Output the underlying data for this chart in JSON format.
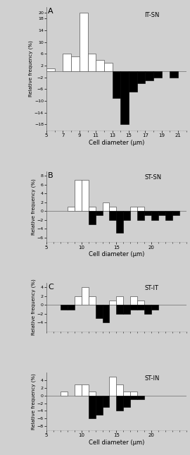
{
  "bg": "#d0d0d0",
  "A": {
    "label": "A",
    "annot": "IT-SN",
    "xlim": [
      5,
      22
    ],
    "ylim": [
      -20,
      22
    ],
    "yticks": [
      -18,
      -14,
      -10,
      -6,
      -2,
      2,
      6,
      10,
      14,
      18,
      20
    ],
    "xticks": [
      5,
      7,
      9,
      11,
      13,
      15,
      17,
      19,
      21
    ],
    "xlabel": "Cell diameter (μm)",
    "ylabel": "Relative frequency (%)",
    "white_left": [
      5,
      7,
      8,
      9,
      10,
      11,
      12
    ],
    "white_h": [
      1,
      6,
      5,
      20,
      6,
      4,
      3
    ],
    "black_left": [
      13,
      14,
      15,
      16,
      17,
      18,
      20
    ],
    "black_h": [
      -9,
      -18,
      -7,
      -4,
      -3,
      -2,
      -2
    ]
  },
  "B": {
    "label": "B",
    "annot": "ST-SN",
    "xlim": [
      5,
      25
    ],
    "ylim": [
      -7,
      9
    ],
    "yticks": [
      -6,
      -4,
      -2,
      0,
      2,
      4,
      6,
      8
    ],
    "xticks": [
      5,
      10,
      15,
      20
    ],
    "xlabel": "Cell diameter (μm)",
    "ylabel": "Relative frequency (%)",
    "white_left": [
      8,
      9,
      10,
      11,
      13,
      14,
      17,
      18
    ],
    "white_h": [
      1,
      7,
      7,
      1,
      2,
      1,
      1,
      1
    ],
    "black_left": [
      11,
      12,
      14,
      15,
      16,
      18,
      19,
      20,
      21,
      22,
      23
    ],
    "black_h": [
      -3,
      -1,
      -2,
      -5,
      -2,
      -2,
      -1,
      -2,
      -1,
      -2,
      -1
    ]
  },
  "C1": {
    "label": "C",
    "annot": "ST-IT",
    "xlim": [
      5,
      25
    ],
    "ylim": [
      -6,
      5
    ],
    "yticks": [
      -4,
      -2,
      0,
      2,
      4
    ],
    "xticks": [],
    "xlabel": "",
    "ylabel": "Relative frequency (%)",
    "white_left": [
      9,
      10,
      11,
      14,
      15,
      17,
      18
    ],
    "white_h": [
      2,
      4,
      2,
      1,
      2,
      2,
      1
    ],
    "black_left": [
      7,
      8,
      12,
      13,
      15,
      16,
      17,
      18,
      19,
      20
    ],
    "black_h": [
      -1,
      -1,
      -3,
      -4,
      -2,
      -2,
      -1,
      -1,
      -2,
      -1
    ]
  },
  "C2": {
    "label": "",
    "annot": "ST-IN",
    "xlim": [
      5,
      25
    ],
    "ylim": [
      -9,
      6
    ],
    "yticks": [
      -8,
      -6,
      -4,
      -2,
      0,
      2,
      4
    ],
    "xticks": [
      5,
      10,
      15,
      20
    ],
    "xlabel": "Cell diameter (μm)",
    "ylabel": "Relative frequency (%)",
    "white_left": [
      7,
      9,
      10,
      11,
      14,
      15,
      16,
      17
    ],
    "white_h": [
      1,
      3,
      3,
      1,
      5,
      3,
      1,
      1
    ],
    "black_left": [
      11,
      12,
      13,
      15,
      16,
      17,
      18
    ],
    "black_h": [
      -6,
      -5,
      -3,
      -4,
      -3,
      -1,
      -1
    ]
  }
}
